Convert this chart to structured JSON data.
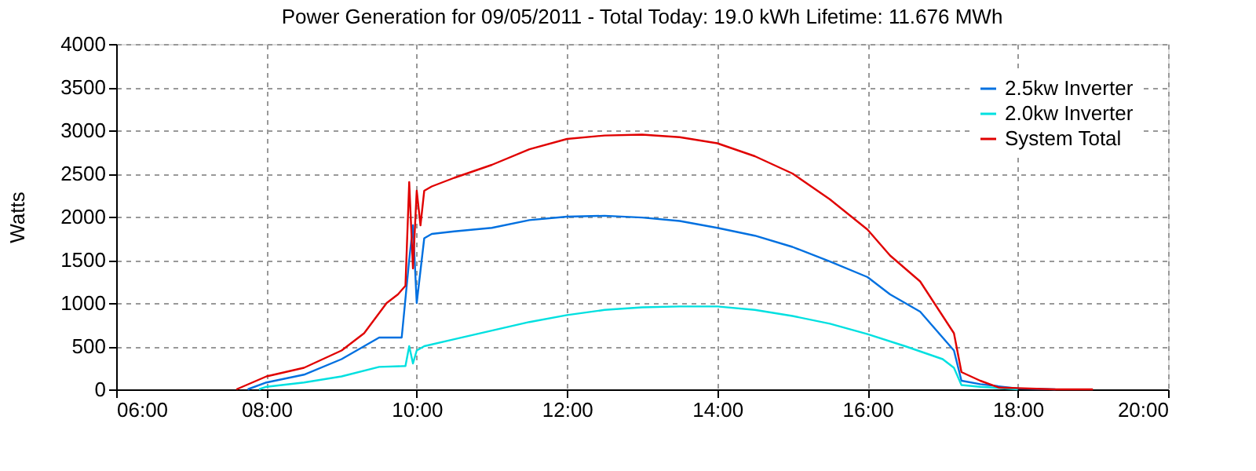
{
  "chart_data": {
    "type": "line",
    "title": "Power Generation for 09/05/2011 - Total Today: 19.0 kWh   Lifetime: 11.676 MWh",
    "ylabel": "Watts",
    "xlim": [
      6,
      20
    ],
    "xticks": [
      {
        "value": 6,
        "label": "06:00"
      },
      {
        "value": 8,
        "label": "08:00"
      },
      {
        "value": 10,
        "label": "10:00"
      },
      {
        "value": 12,
        "label": "12:00"
      },
      {
        "value": 14,
        "label": "14:00"
      },
      {
        "value": 16,
        "label": "16:00"
      },
      {
        "value": 18,
        "label": "18:00"
      },
      {
        "value": 20,
        "label": "20:00"
      }
    ],
    "ylim": [
      0,
      4000
    ],
    "yticks": [
      0,
      500,
      1000,
      1500,
      2000,
      2500,
      3000,
      3500,
      4000
    ],
    "grid": true,
    "legend": "top right",
    "marker": "none",
    "line_style": "solid",
    "series": [
      {
        "name": "2.5kw Inverter",
        "color": "#0070e0",
        "x": [
          7.75,
          8.0,
          8.5,
          9.0,
          9.3,
          9.5,
          9.8,
          9.9,
          9.95,
          10.0,
          10.1,
          10.2,
          10.5,
          11.0,
          11.5,
          12.0,
          12.5,
          13.0,
          13.5,
          14.0,
          14.5,
          15.0,
          15.5,
          16.0,
          16.3,
          16.7,
          17.0,
          17.15,
          17.25,
          17.5,
          18.0,
          18.5
        ],
        "values": [
          0,
          80,
          170,
          350,
          500,
          600,
          600,
          1500,
          1900,
          1000,
          1750,
          1800,
          1830,
          1870,
          1960,
          2000,
          2010,
          1990,
          1950,
          1870,
          1780,
          1650,
          1480,
          1300,
          1100,
          900,
          600,
          450,
          100,
          60,
          10,
          0
        ]
      },
      {
        "name": "2.0kw Inverter",
        "color": "#00e0e0",
        "x": [
          7.9,
          8.0,
          8.5,
          9.0,
          9.5,
          9.85,
          9.9,
          9.95,
          10.0,
          10.1,
          10.5,
          11.0,
          11.5,
          12.0,
          12.5,
          13.0,
          13.5,
          14.0,
          14.5,
          15.0,
          15.5,
          16.0,
          16.5,
          17.0,
          17.15,
          17.25,
          17.5,
          18.0
        ],
        "values": [
          0,
          30,
          80,
          150,
          260,
          270,
          500,
          300,
          450,
          500,
          580,
          680,
          780,
          860,
          920,
          950,
          960,
          960,
          920,
          850,
          760,
          640,
          500,
          350,
          250,
          50,
          30,
          0
        ]
      },
      {
        "name": "System Total",
        "color": "#e00000",
        "x": [
          7.6,
          8.0,
          8.5,
          9.0,
          9.3,
          9.6,
          9.75,
          9.85,
          9.9,
          9.95,
          10.0,
          10.05,
          10.1,
          10.2,
          10.5,
          11.0,
          11.5,
          12.0,
          12.5,
          13.0,
          13.5,
          14.0,
          14.5,
          15.0,
          15.5,
          16.0,
          16.3,
          16.7,
          17.0,
          17.15,
          17.25,
          17.5,
          17.75,
          18.0,
          18.5,
          19.0
        ],
        "values": [
          0,
          150,
          250,
          450,
          650,
          1000,
          1100,
          1200,
          2400,
          1400,
          2300,
          1900,
          2300,
          2350,
          2450,
          2600,
          2780,
          2900,
          2940,
          2950,
          2920,
          2850,
          2700,
          2500,
          2200,
          1850,
          1550,
          1250,
          850,
          650,
          200,
          100,
          20,
          15,
          0,
          0
        ]
      }
    ]
  }
}
